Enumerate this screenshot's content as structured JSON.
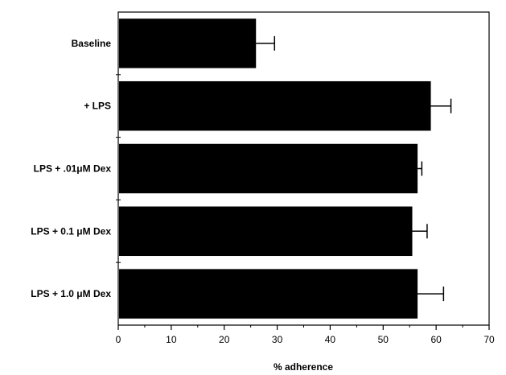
{
  "chart_data": {
    "type": "bar",
    "orientation": "horizontal",
    "categories": [
      "Baseline",
      "+ LPS",
      "LPS + .01μM Dex",
      "LPS + 0.1 μM Dex",
      "LPS + 1.0 μM Dex"
    ],
    "values": [
      26.0,
      59.0,
      56.5,
      55.5,
      56.5
    ],
    "error_upper": [
      29.5,
      62.8,
      57.3,
      58.3,
      61.4
    ],
    "xlabel": "% adherence",
    "ylabel": "",
    "title": "",
    "xlim": [
      0,
      70
    ],
    "xticks": [
      0,
      10,
      20,
      30,
      40,
      50,
      60,
      70
    ],
    "grid": false,
    "bar_color": "#000000"
  }
}
